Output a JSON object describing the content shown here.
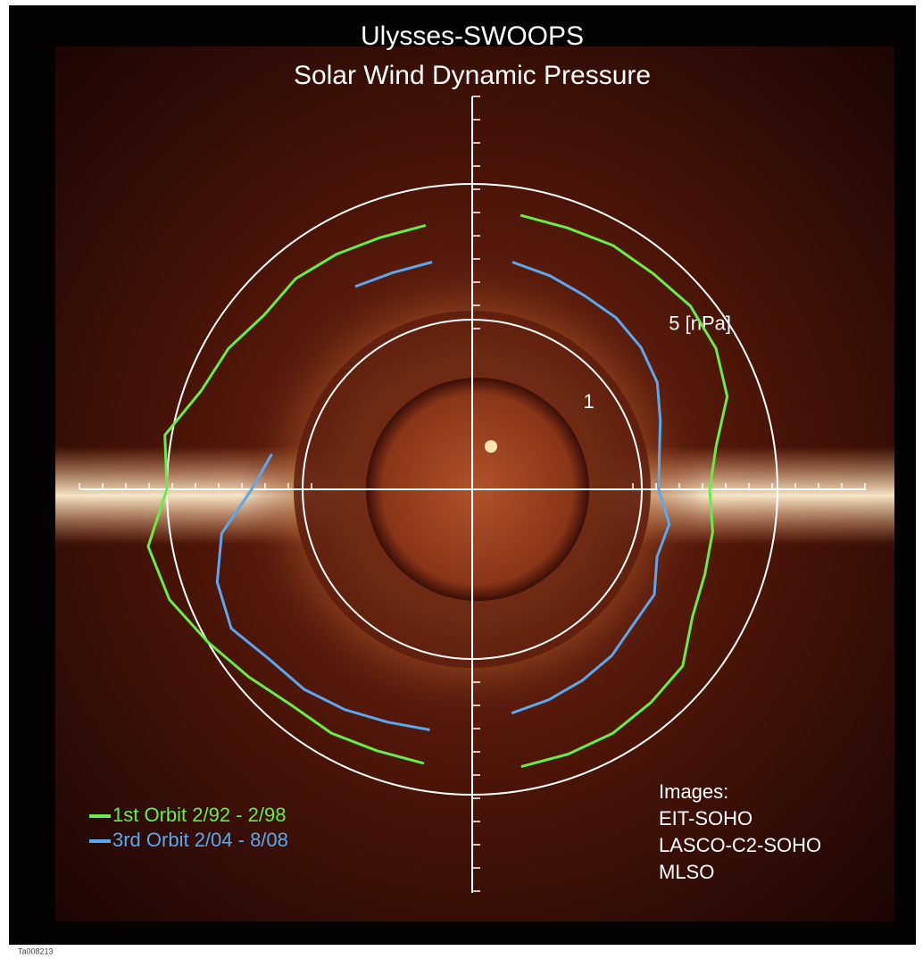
{
  "chart_data": {
    "type": "polar",
    "title": "Ulysses-SWOOPS",
    "subtitle": "Solar Wind Dynamic Pressure",
    "x": [
      -80,
      -70,
      -60,
      -50,
      -40,
      -30,
      -20,
      -10,
      0,
      10,
      20,
      30,
      40,
      50,
      60,
      70,
      80,
      90,
      100,
      110,
      120,
      130,
      140,
      150,
      160,
      170,
      180,
      190,
      200,
      210,
      220,
      230,
      240,
      250,
      260
    ],
    "series": [
      {
        "name": "1st Orbit 2/92 - 2/98",
        "color": "#66ee44",
        "values": [
          4.3,
          4.3,
          4.3,
          4.2,
          4.1,
          3.5,
          3.3,
          3.2,
          3.0,
          3.3,
          4.0,
          4.3,
          4.4,
          4.3,
          4.3,
          4.2,
          4.2,
          null,
          3.9,
          3.9,
          4.0,
          4.1,
          4.0,
          4.3,
          4.5,
          5.2,
          5.0,
          5.7,
          5.5,
          5.0,
          4.6,
          4.3,
          4.3,
          4.2,
          4.2
        ]
      },
      {
        "name": "3rd Orbit 2/04 - 8/08",
        "color": "#5aa8f0",
        "values": [
          2.7,
          2.6,
          2.5,
          2.4,
          2.2,
          2.2,
          1.8,
          1.9,
          1.5,
          1.6,
          1.9,
          2.3,
          2.5,
          2.6,
          2.6,
          2.7,
          2.8,
          null,
          2.8,
          2.8,
          2.9,
          null,
          null,
          null,
          null,
          2.0,
          2.5,
          3.5,
          4.0,
          4.2,
          3.8,
          3.7,
          3.5,
          3.3,
          3.2
        ]
      }
    ],
    "rlim": [
      -4,
      6
    ],
    "rticks": [
      {
        "value": 1,
        "label": "1"
      },
      {
        "value": 5,
        "label": "5 [nPa]"
      }
    ],
    "annotations": [
      "Images:",
      "EIT-SOHO",
      "LASCO-C2-SOHO",
      "MLSO"
    ],
    "image_id": "Ta008213"
  }
}
